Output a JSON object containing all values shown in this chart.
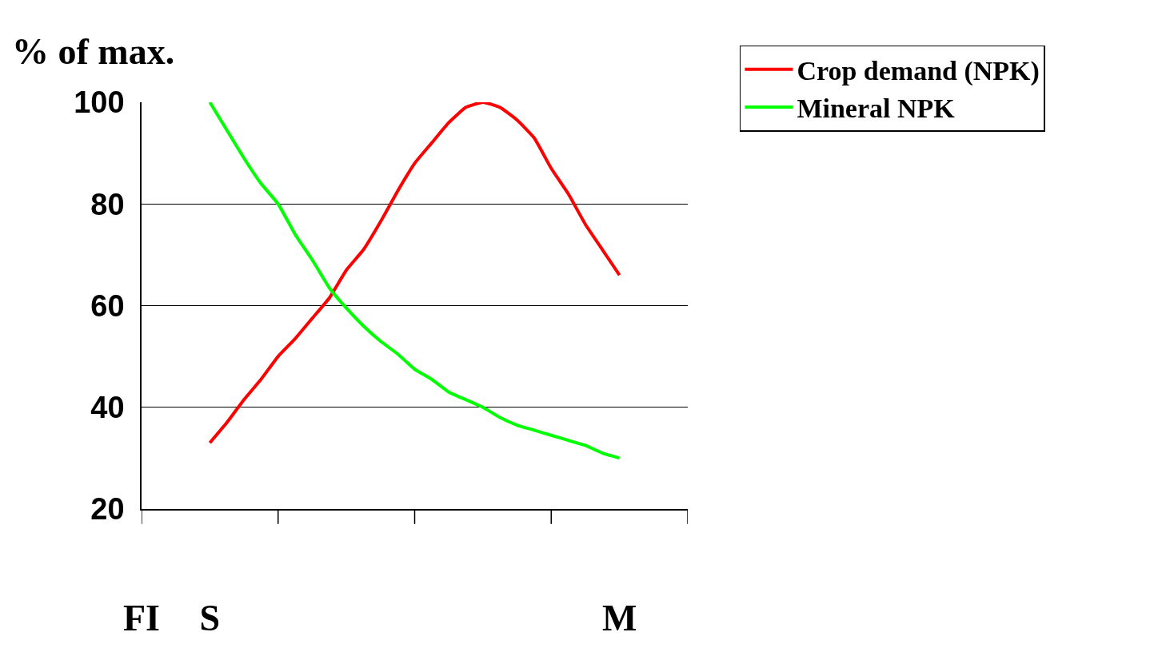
{
  "chart_data": {
    "type": "line",
    "ylabel": "% of max.",
    "categories": [
      "FI",
      null,
      null,
      null,
      "S",
      null,
      null,
      null,
      null,
      null,
      null,
      null,
      null,
      null,
      null,
      null,
      null,
      null,
      null,
      null,
      null,
      null,
      null,
      null,
      null,
      null,
      null,
      null,
      "M",
      null,
      null,
      null,
      null
    ],
    "ylim": [
      20,
      100
    ],
    "yticks": [
      20,
      40,
      60,
      80,
      100
    ],
    "grid": "y",
    "legend": "top right",
    "marker": "none",
    "line_style": "solid",
    "series": [
      {
        "name": "Crop demand (NPK)",
        "color": "#ff0000",
        "values": [
          null,
          null,
          null,
          null,
          33,
          37,
          41.5,
          45.5,
          50,
          53.5,
          57.5,
          61.5,
          67,
          71,
          76.5,
          82.5,
          88,
          92,
          96,
          99,
          100,
          99,
          96.5,
          93,
          87,
          82,
          76,
          71,
          66,
          null,
          null,
          null,
          null
        ]
      },
      {
        "name": "Mineral NPK",
        "color": "#00ff00",
        "values": [
          null,
          null,
          null,
          null,
          100,
          94.5,
          89,
          84,
          80,
          74,
          69,
          63.5,
          59.5,
          56,
          53,
          50.5,
          47.5,
          45.5,
          43,
          41.5,
          40,
          38,
          36.5,
          35.5,
          34.5,
          33.5,
          32.5,
          31,
          30,
          null,
          null,
          null,
          null
        ]
      }
    ]
  }
}
